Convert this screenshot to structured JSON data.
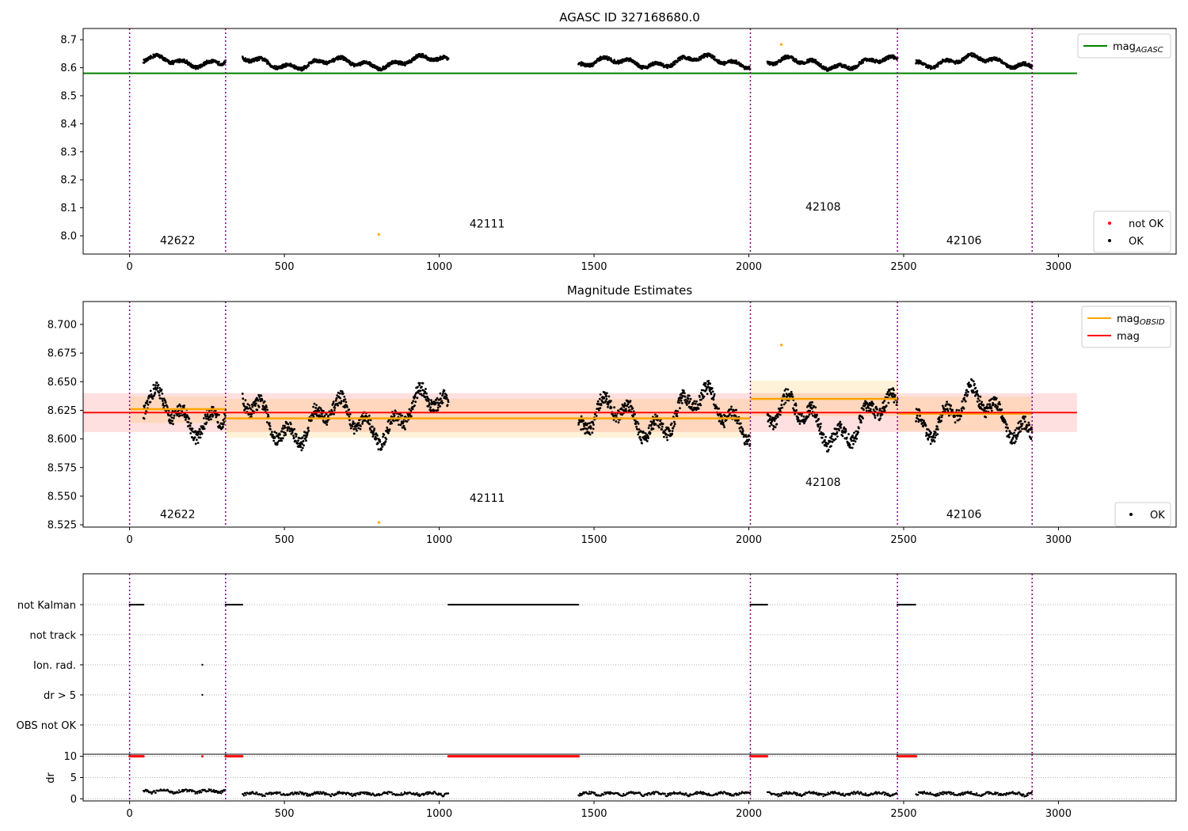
{
  "chart_data": [
    {
      "id": "agasc",
      "type": "scatter",
      "title": "AGASC ID 327168680.0",
      "xlim": [
        -150,
        3380
      ],
      "ylim": [
        7.935,
        8.74
      ],
      "xticks": [
        "0",
        "500",
        "1000",
        "1500",
        "2000",
        "2500",
        "3000"
      ],
      "yticks": [
        "8.0",
        "8.1",
        "8.2",
        "8.3",
        "8.4",
        "8.5",
        "8.6",
        "8.7"
      ],
      "grid": false,
      "legend_top": {
        "position": "top-right",
        "entries": [
          {
            "label": "mag",
            "sub": "AGASC",
            "color": "#008000"
          }
        ]
      },
      "legend_bottom": {
        "position": "bottom-right",
        "entries": [
          {
            "label": "not OK",
            "color": "#ff0000"
          },
          {
            "label": "OK",
            "color": "#000000"
          }
        ]
      },
      "mag_agasc": {
        "value": 8.58,
        "x_range": [
          -150,
          3060
        ],
        "color": "#008000"
      },
      "obsid_labels": [
        {
          "text": "42622",
          "x": 155,
          "y": 7.97
        },
        {
          "text": "42111",
          "x": 1155,
          "y": 8.03
        },
        {
          "text": "42108",
          "x": 2240,
          "y": 8.09
        },
        {
          "text": "42106",
          "x": 2695,
          "y": 7.97
        }
      ],
      "outliers": [
        {
          "x": 805,
          "y": 8.005,
          "color": "#ffa500"
        },
        {
          "x": 2105,
          "y": 8.683,
          "color": "#ffa500"
        }
      ]
    },
    {
      "id": "estimates",
      "type": "scatter",
      "title": "Magnitude Estimates",
      "xlim": [
        -150,
        3380
      ],
      "ylim": [
        8.523,
        8.72
      ],
      "xticks": [
        "0",
        "500",
        "1000",
        "1500",
        "2000",
        "2500",
        "3000"
      ],
      "yticks": [
        "8.525",
        "8.550",
        "8.575",
        "8.600",
        "8.625",
        "8.650",
        "8.675",
        "8.700"
      ],
      "grid": false,
      "legend_top": {
        "position": "top-right",
        "entries": [
          {
            "label": "mag",
            "sub": "OBSID",
            "color": "#ffa500"
          },
          {
            "label": "mag",
            "sub": "",
            "color": "#ff0000"
          }
        ]
      },
      "legend_bottom": {
        "position": "bottom-right",
        "entries": [
          {
            "label": "OK",
            "color": "#000000"
          }
        ]
      },
      "mag": {
        "value": 8.623,
        "band": [
          8.606,
          8.64
        ],
        "x_range": [
          -150,
          3060
        ],
        "color": "#ff0000"
      },
      "mag_obsid": [
        {
          "x": [
            0,
            310
          ],
          "value": 8.626,
          "band": [
            8.614,
            8.637
          ]
        },
        {
          "x": [
            310,
            2005
          ],
          "value": 8.618,
          "band": [
            8.601,
            8.635
          ]
        },
        {
          "x": [
            2005,
            2480
          ],
          "value": 8.635,
          "band": [
            8.62,
            8.651
          ]
        },
        {
          "x": [
            2480,
            2915
          ],
          "value": 8.622,
          "band": [
            8.607,
            8.637
          ]
        }
      ],
      "obsid_labels": [
        {
          "text": "42622",
          "x": 155,
          "y": 8.531
        },
        {
          "text": "42111",
          "x": 1155,
          "y": 8.545
        },
        {
          "text": "42108",
          "x": 2240,
          "y": 8.559
        },
        {
          "text": "42106",
          "x": 2695,
          "y": 8.531
        }
      ],
      "outliers": [
        {
          "x": 805,
          "y": 8.527,
          "color": "#ffa500"
        },
        {
          "x": 2105,
          "y": 8.682,
          "color": "#ffa500"
        }
      ]
    },
    {
      "id": "flags",
      "type": "scatter",
      "title": "",
      "xlim": [
        -150,
        3380
      ],
      "categories": [
        "not Kalman",
        "not track",
        "Ion. rad.",
        "dr > 5",
        "OBS not OK"
      ],
      "grid": true,
      "not_kalman_ranges": [
        [
          0,
          45
        ],
        [
          310,
          365
        ],
        [
          1030,
          1450
        ],
        [
          2005,
          2060
        ],
        [
          2480,
          2540
        ]
      ],
      "ion_rad_points": [
        235
      ],
      "dr_gt5_points": [
        235
      ]
    },
    {
      "id": "dr",
      "type": "scatter",
      "title": "",
      "xlim": [
        -150,
        3380
      ],
      "ylim": [
        -0.5,
        10.5
      ],
      "ylabel": "dr",
      "yticks": [
        "0",
        "5",
        "10"
      ],
      "xticks": [
        "0",
        "500",
        "1000",
        "1500",
        "2000",
        "2500",
        "3000"
      ],
      "clip_ranges": [
        [
          0,
          45
        ],
        [
          310,
          365
        ],
        [
          1030,
          1450
        ],
        [
          2005,
          2060
        ],
        [
          2480,
          2540
        ]
      ],
      "clip_value": 10,
      "extra_red": [
        235
      ]
    }
  ],
  "observation_boundaries": [
    0,
    310,
    2005,
    2480,
    2915
  ],
  "segments": [
    [
      45,
      310
    ],
    [
      365,
      1030
    ],
    [
      1450,
      2005
    ],
    [
      2060,
      2480
    ],
    [
      2540,
      2915
    ]
  ]
}
